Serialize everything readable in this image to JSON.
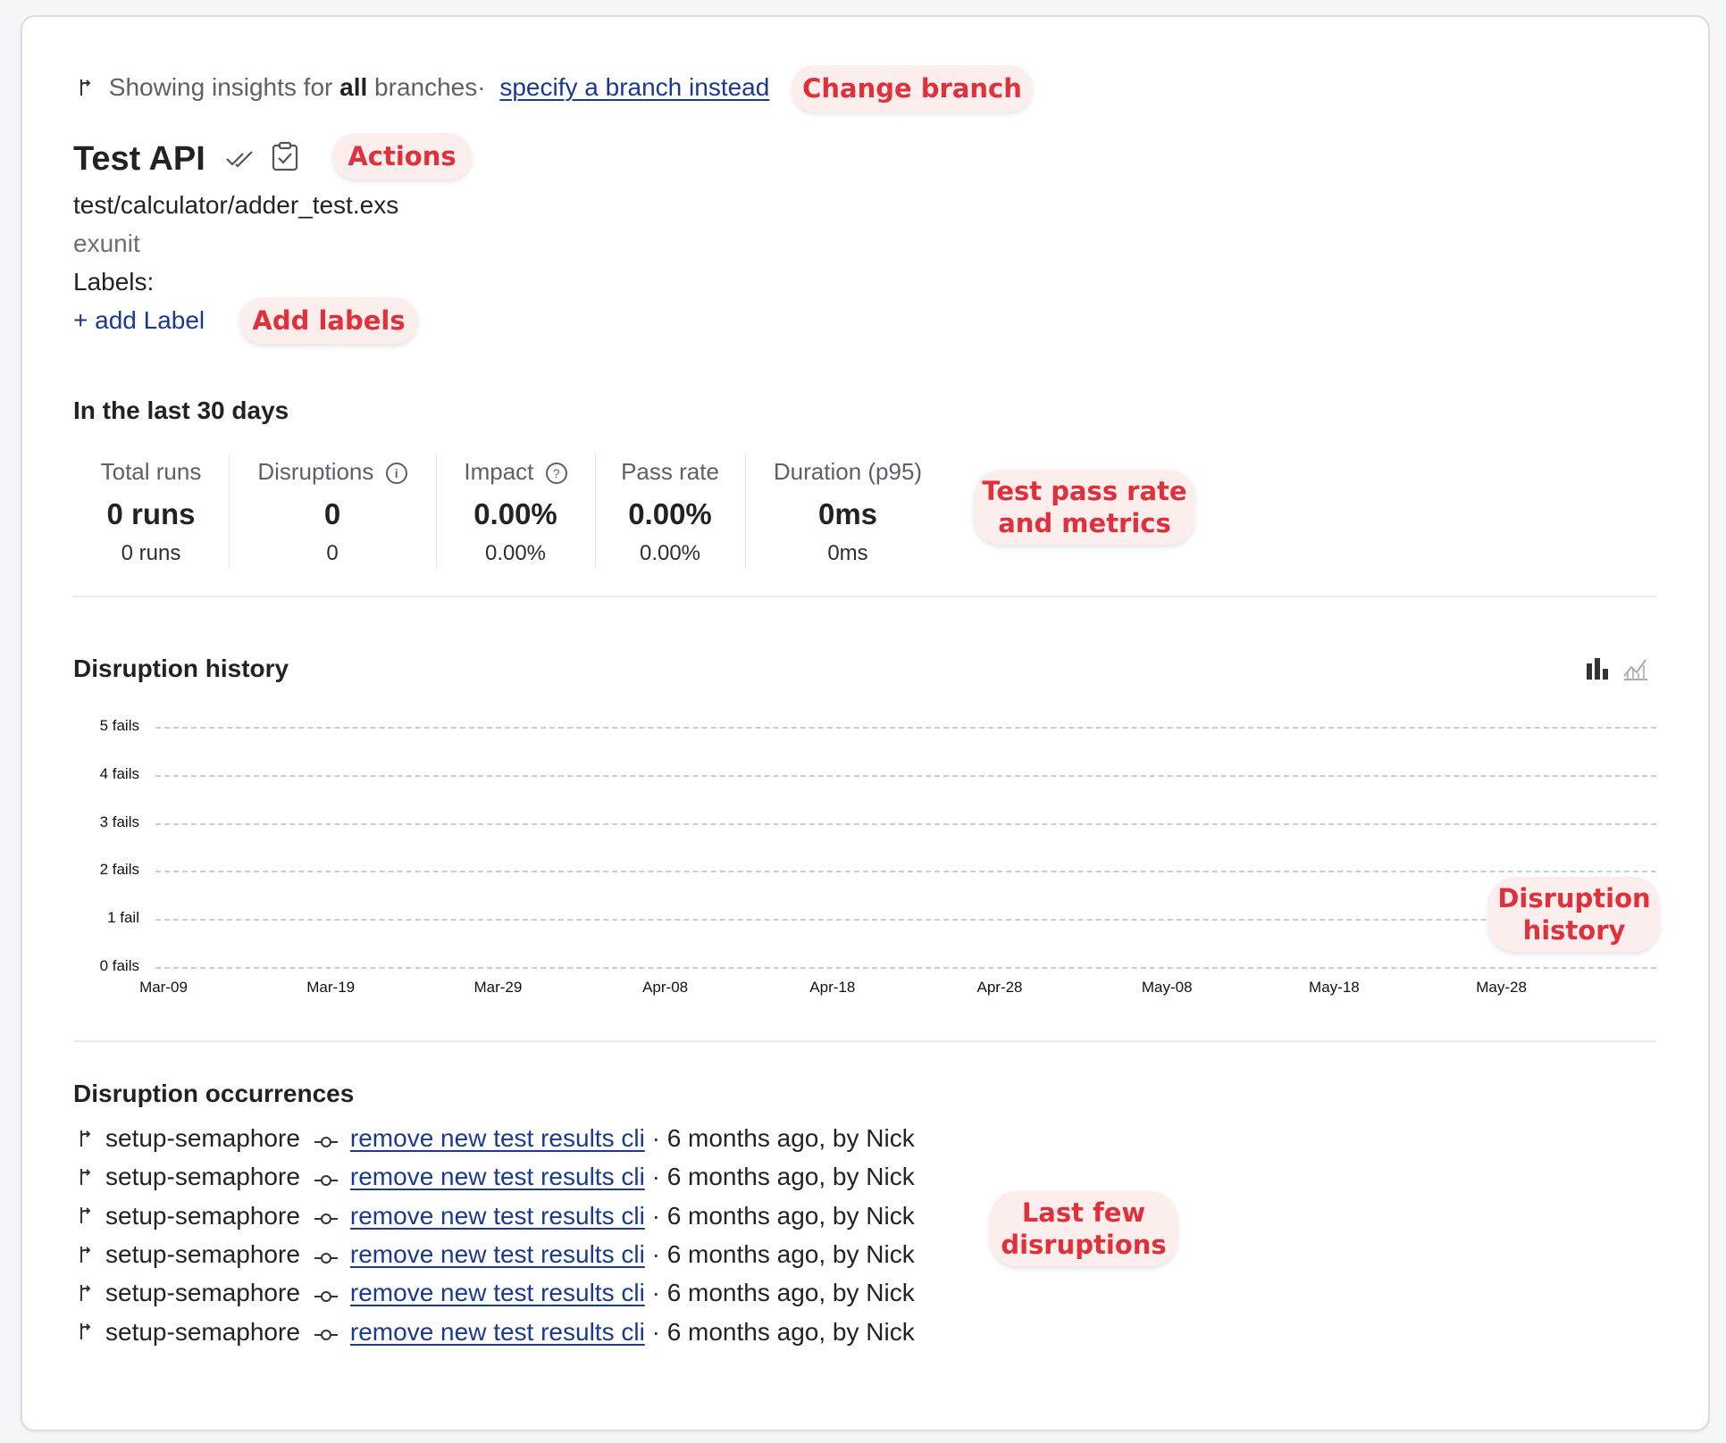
{
  "branch_bar": {
    "prefix": "Showing insights for ",
    "scope": "all",
    "suffix": " branches·",
    "link": "specify a branch instead"
  },
  "test": {
    "title": "Test API",
    "file": "test/calculator/adder_test.exs",
    "framework": "exunit",
    "labels_label": "Labels:",
    "add_label": "+ add Label"
  },
  "metrics": {
    "period": "In the last 30 days",
    "items": [
      {
        "label": "Total runs",
        "value": "0 runs",
        "sub": "0 runs"
      },
      {
        "label": "Disruptions",
        "value": "0",
        "sub": "0"
      },
      {
        "label": "Impact",
        "value": "0.00%",
        "sub": "0.00%"
      },
      {
        "label": "Pass rate",
        "value": "0.00%",
        "sub": "0.00%"
      },
      {
        "label": "Duration (p95)",
        "value": "0ms",
        "sub": "0ms"
      }
    ]
  },
  "history": {
    "title": "Disruption history"
  },
  "chart_data": {
    "type": "bar",
    "title": "Disruption history",
    "y_ticks": [
      "5 fails",
      "4 fails",
      "3 fails",
      "2 fails",
      "1 fail",
      "0 fails"
    ],
    "ylim": [
      0,
      5
    ],
    "x_ticks": [
      "Mar-09",
      "Mar-19",
      "Mar-29",
      "Apr-08",
      "Apr-18",
      "Apr-28",
      "May-08",
      "May-18",
      "May-28"
    ],
    "values": [],
    "grid": true
  },
  "occurrences": {
    "title": "Disruption occurrences",
    "rows": [
      {
        "branch": "setup-semaphore",
        "commit": "remove new test results cli",
        "meta": "6 months ago, by Nick"
      },
      {
        "branch": "setup-semaphore",
        "commit": "remove new test results cli",
        "meta": "6 months ago, by Nick"
      },
      {
        "branch": "setup-semaphore",
        "commit": "remove new test results cli",
        "meta": "6 months ago, by Nick"
      },
      {
        "branch": "setup-semaphore",
        "commit": "remove new test results cli",
        "meta": "6 months ago, by Nick"
      },
      {
        "branch": "setup-semaphore",
        "commit": "remove new test results cli",
        "meta": "6 months ago, by Nick"
      },
      {
        "branch": "setup-semaphore",
        "commit": "remove new test results cli",
        "meta": "6 months ago, by Nick"
      }
    ]
  },
  "callouts": {
    "change_branch": "Change branch",
    "actions": "Actions",
    "add_labels": "Add labels",
    "metrics_line1": "Test pass rate",
    "metrics_line2": "and metrics",
    "history_line1": "Disruption",
    "history_line2": "history",
    "last_line1": "Last few",
    "last_line2": "disruptions"
  },
  "colors": {
    "callout_text": "#e0303b",
    "callout_bg": "#fdeeee",
    "link": "#1b3a8f"
  }
}
